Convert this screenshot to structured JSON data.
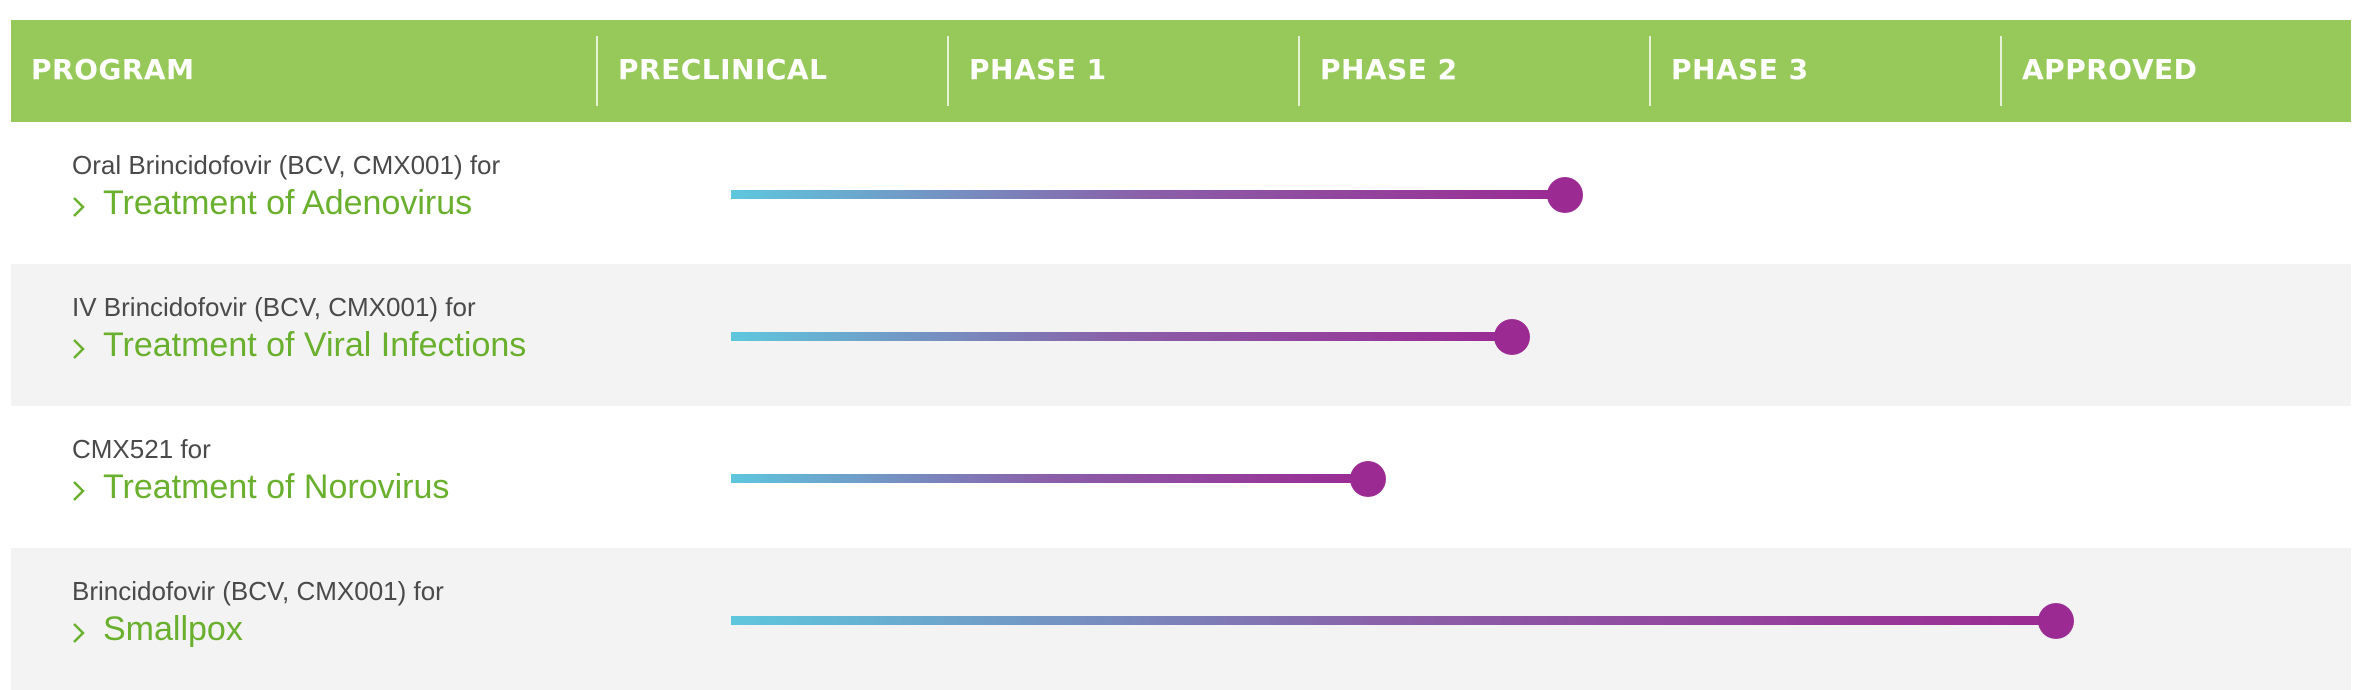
{
  "header": {
    "columns": [
      "PROGRAM",
      "PRECLINICAL",
      "PHASE 1",
      "PHASE 2",
      "PHASE 3",
      "APPROVED"
    ]
  },
  "rows": [
    {
      "subtitle": "Oral Brincidofovir (BCV, CMX001) for",
      "title": "Treatment of Adenovirus",
      "progress_stage": 2.76
    },
    {
      "subtitle": "IV Brincidofovir (BCV, CMX001) for",
      "title": "Treatment of Viral Infections",
      "progress_stage": 2.61
    },
    {
      "subtitle": "CMX521 for",
      "title": "Treatment of Norovirus",
      "progress_stage": 2.2
    },
    {
      "subtitle": "Brincidofovir (BCV, CMX001) for",
      "title": "Smallpox",
      "progress_stage": 4.16
    }
  ],
  "colors": {
    "header_bg": "#97c95a",
    "title_green": "#6ab02e",
    "bar_start": "#5ec7dd",
    "bar_end": "#9b2a93",
    "alt_row_bg": "#f2f3f2"
  },
  "icons": {
    "row_expand": "chevron-right-icon"
  }
}
